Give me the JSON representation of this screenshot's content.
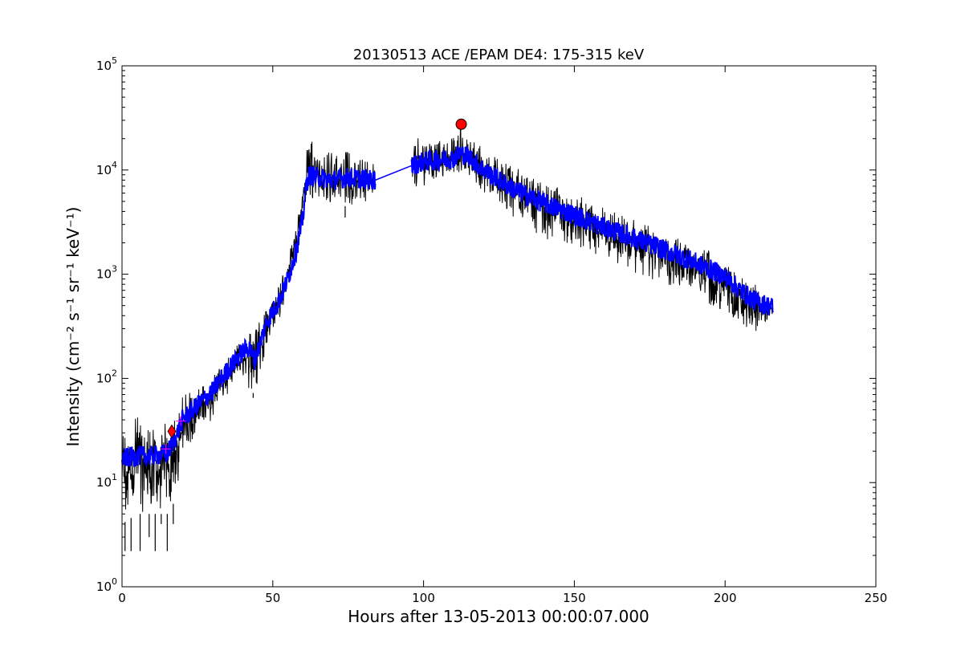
{
  "chart_data": {
    "type": "line",
    "title": "20130513 ACE /EPAM DE4: 175-315 keV",
    "xlabel": "Hours after 13-05-2013 00:00:07.000",
    "ylabel": "Intensity (cm⁻² s⁻¹ sr⁻¹ keV⁻¹)",
    "xlim": [
      0,
      250
    ],
    "ylim": [
      1,
      100000
    ],
    "yscale": "log",
    "grid": false,
    "x_ticks": [
      0,
      50,
      100,
      150,
      200,
      250
    ],
    "x_tick_labels": [
      "0",
      "50",
      "100",
      "150",
      "200",
      "250"
    ],
    "y_ticks": [
      1,
      10,
      100,
      1000,
      10000,
      100000
    ],
    "y_tick_labels": [
      {
        "base": "10",
        "exp": "0"
      },
      {
        "base": "10",
        "exp": "1"
      },
      {
        "base": "10",
        "exp": "2"
      },
      {
        "base": "10",
        "exp": "3"
      },
      {
        "base": "10",
        "exp": "4"
      },
      {
        "base": "10",
        "exp": "5"
      }
    ],
    "series": [
      {
        "role": "raw data",
        "color": "#000000",
        "gap": [
          84,
          96
        ],
        "upper_envelope": {
          "x": [
            0,
            5,
            10,
            15,
            18,
            20,
            25,
            30,
            35,
            40,
            42,
            44,
            48,
            52,
            55,
            58,
            60,
            61,
            62,
            65,
            70,
            75,
            80,
            84,
            96,
            100,
            105,
            110,
            112,
            115,
            120,
            125,
            130,
            140,
            150,
            160,
            170,
            180,
            190,
            200,
            205,
            210,
            216
          ],
          "y": [
            40,
            45,
            40,
            40,
            45,
            70,
            90,
            110,
            180,
            260,
            320,
            300,
            500,
            800,
            1500,
            3000,
            7000,
            15000,
            20000,
            17000,
            15000,
            16000,
            14000,
            13000,
            25000,
            22000,
            20000,
            22000,
            26000,
            22000,
            16000,
            13000,
            11000,
            8000,
            6000,
            4500,
            3500,
            2600,
            2000,
            1400,
            1000,
            800,
            550
          ]
        },
        "lower_envelope": {
          "x": [
            0,
            5,
            10,
            15,
            18,
            20,
            25,
            30,
            35,
            40,
            42,
            44,
            48,
            52,
            55,
            58,
            60,
            61,
            62,
            65,
            70,
            75,
            80,
            84,
            96,
            100,
            105,
            110,
            112,
            115,
            120,
            125,
            130,
            140,
            150,
            160,
            170,
            180,
            190,
            200,
            205,
            210,
            216
          ],
          "y": [
            4,
            5,
            5,
            5,
            7,
            18,
            30,
            40,
            70,
            100,
            80,
            70,
            200,
            350,
            700,
            1500,
            3500,
            4500,
            5000,
            4500,
            4500,
            4500,
            4500,
            4500,
            6500,
            7000,
            7500,
            8000,
            8500,
            8000,
            6000,
            4500,
            3500,
            2200,
            1700,
            1300,
            1000,
            800,
            600,
            380,
            300,
            260,
            400
          ]
        },
        "drops": [
          {
            "x": 1,
            "y": 2.2
          },
          {
            "x": 3,
            "y": 2.2
          },
          {
            "x": 6,
            "y": 2.2
          },
          {
            "x": 9,
            "y": 3
          },
          {
            "x": 11,
            "y": 2.2
          },
          {
            "x": 13,
            "y": 4
          },
          {
            "x": 15,
            "y": 2.2
          },
          {
            "x": 17,
            "y": 4
          },
          {
            "x": 43.5,
            "y": 65
          },
          {
            "x": 74,
            "y": 3500
          }
        ]
      },
      {
        "role": "smoothed",
        "color": "#0000ff",
        "x": [
          0,
          5,
          10,
          15,
          18,
          20,
          25,
          30,
          35,
          40,
          42,
          44,
          48,
          52,
          55,
          58,
          60,
          61,
          62,
          65,
          70,
          75,
          80,
          84,
          96,
          100,
          105,
          110,
          112,
          115,
          120,
          125,
          130,
          140,
          150,
          160,
          170,
          180,
          190,
          200,
          205,
          210,
          216
        ],
        "y": [
          17,
          18,
          18,
          19,
          28,
          40,
          55,
          75,
          120,
          180,
          200,
          150,
          350,
          550,
          900,
          1800,
          3500,
          7000,
          9000,
          8500,
          8000,
          8500,
          8200,
          8000,
          11000,
          12000,
          12500,
          13000,
          14500,
          13500,
          10000,
          8000,
          6500,
          4800,
          3700,
          2800,
          2200,
          1700,
          1300,
          950,
          700,
          550,
          480
        ],
        "band_half_width_decades": 0.07
      }
    ],
    "markers": [
      {
        "shape": "circle",
        "x": 112.5,
        "y": 27500,
        "color": "#ff0000"
      },
      {
        "shape": "diamond",
        "x": 16.5,
        "y": 31,
        "color": "#ff0000"
      },
      {
        "shape": "plus",
        "x": 19.5,
        "y": 39,
        "color": "#ff00ff"
      },
      {
        "shape": "plus",
        "x": 14.5,
        "y": 21,
        "color": "#ff00ff"
      }
    ]
  }
}
